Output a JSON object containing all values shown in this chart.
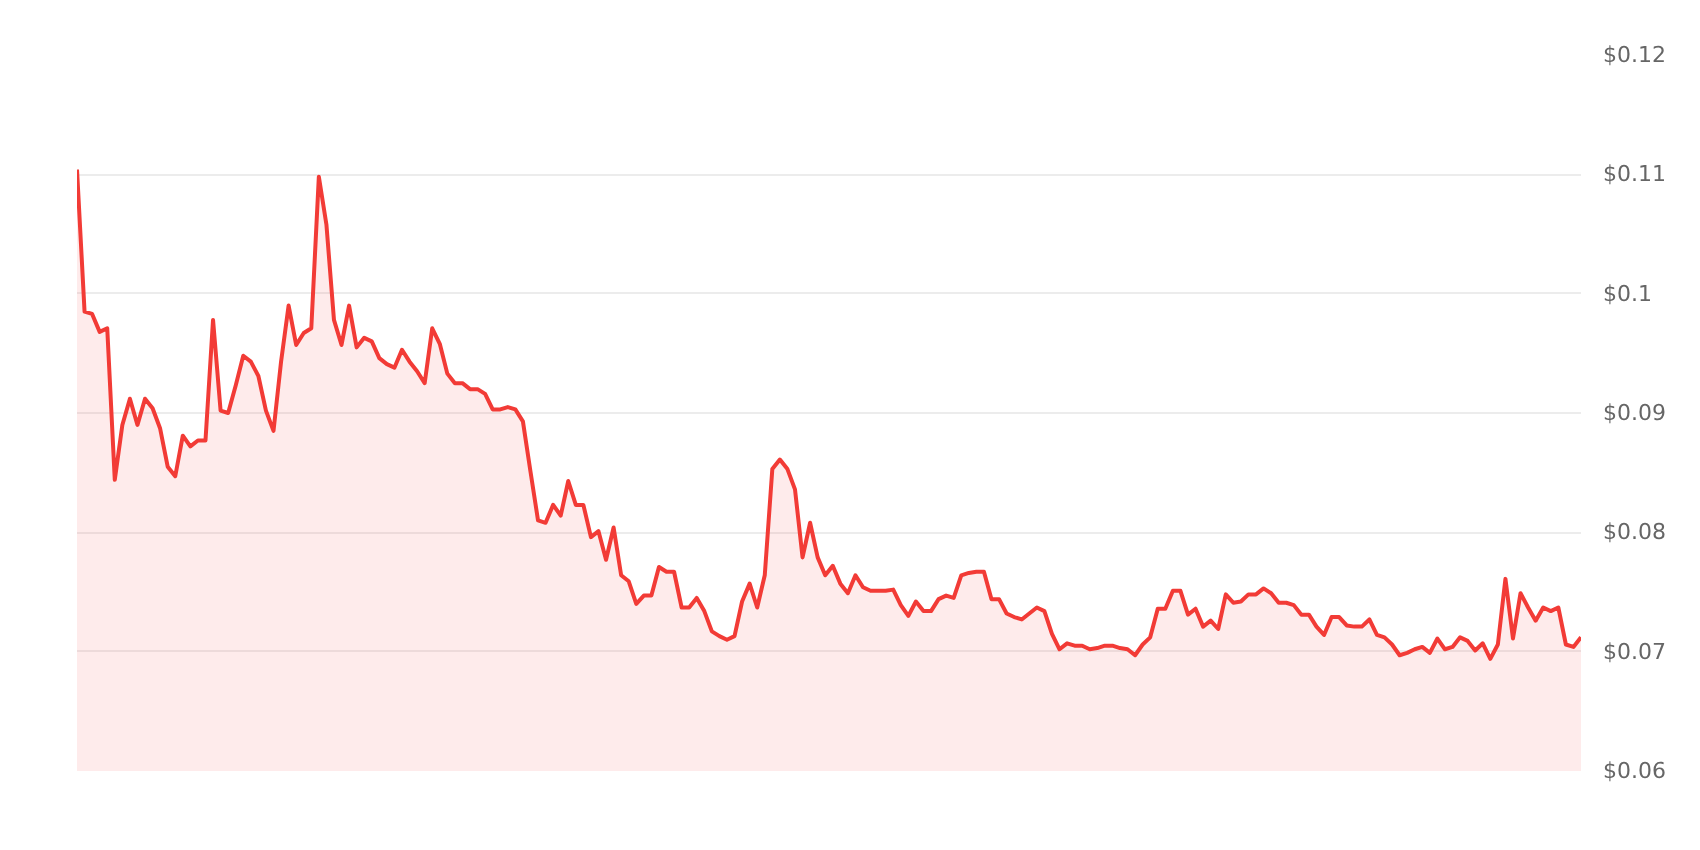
{
  "chart_data": {
    "type": "area",
    "series": [
      {
        "color": "#f23b36",
        "values": [
          0.1104,
          0.0985,
          0.0983,
          0.0968,
          0.0971,
          0.0844,
          0.089,
          0.0912,
          0.089,
          0.0912,
          0.0904,
          0.0887,
          0.0855,
          0.0847,
          0.0881,
          0.0872,
          0.0877,
          0.0877,
          0.0978,
          0.0902,
          0.09,
          0.0923,
          0.0948,
          0.0943,
          0.0931,
          0.0902,
          0.0885,
          0.0943,
          0.099,
          0.0957,
          0.0967,
          0.0971,
          0.1098,
          0.1058,
          0.0978,
          0.0957,
          0.099,
          0.0955,
          0.0963,
          0.096,
          0.0946,
          0.0941,
          0.0938,
          0.0953,
          0.0943,
          0.0935,
          0.0925,
          0.0971,
          0.0958,
          0.0933,
          0.0925,
          0.0925,
          0.092,
          0.092,
          0.0916,
          0.0903,
          0.0903,
          0.0905,
          0.0903,
          0.0893,
          0.0851,
          0.081,
          0.0808,
          0.0823,
          0.0814,
          0.0843,
          0.0823,
          0.0823,
          0.0796,
          0.0801,
          0.0777,
          0.0804,
          0.0764,
          0.0759,
          0.074,
          0.0747,
          0.0747,
          0.0771,
          0.0767,
          0.0767,
          0.0737,
          0.0737,
          0.0745,
          0.0734,
          0.0717,
          0.0713,
          0.071,
          0.0713,
          0.0742,
          0.0757,
          0.0737,
          0.0764,
          0.0853,
          0.0861,
          0.0853,
          0.0836,
          0.0779,
          0.0808,
          0.0779,
          0.0764,
          0.0772,
          0.0757,
          0.0749,
          0.0764,
          0.0754,
          0.0751,
          0.0751,
          0.0751,
          0.0752,
          0.0739,
          0.073,
          0.0742,
          0.0734,
          0.0734,
          0.0744,
          0.0747,
          0.0745,
          0.0764,
          0.0766,
          0.0767,
          0.0767,
          0.0744,
          0.0744,
          0.0732,
          0.0729,
          0.0727,
          0.0732,
          0.0737,
          0.0734,
          0.0715,
          0.0702,
          0.0707,
          0.0705,
          0.0705,
          0.0702,
          0.0703,
          0.0705,
          0.0705,
          0.0703,
          0.0702,
          0.0697,
          0.0706,
          0.0712,
          0.0736,
          0.0736,
          0.0751,
          0.0751,
          0.0731,
          0.0736,
          0.0721,
          0.0726,
          0.0719,
          0.0748,
          0.0741,
          0.0742,
          0.0748,
          0.0748,
          0.0753,
          0.0749,
          0.0741,
          0.0741,
          0.0739,
          0.0731,
          0.0731,
          0.0721,
          0.0714,
          0.0729,
          0.0729,
          0.0722,
          0.0721,
          0.0721,
          0.0727,
          0.0714,
          0.0712,
          0.0706,
          0.0697,
          0.0699,
          0.0702,
          0.0704,
          0.0699,
          0.0711,
          0.0702,
          0.0704,
          0.0712,
          0.0709,
          0.0701,
          0.0707,
          0.0694,
          0.0706,
          0.0761,
          0.0711,
          0.0749,
          0.0737,
          0.0726,
          0.0737,
          0.0734,
          0.0737,
          0.0706,
          0.0704,
          0.0712
        ]
      }
    ],
    "ylim": [
      0.06,
      0.12
    ],
    "yticks": [
      {
        "value": 0.06,
        "label": "$0.06"
      },
      {
        "value": 0.07,
        "label": "$0.07"
      },
      {
        "value": 0.08,
        "label": "$0.08"
      },
      {
        "value": 0.09,
        "label": "$0.09"
      },
      {
        "value": 0.1,
        "label": "$0.1"
      },
      {
        "value": 0.11,
        "label": "$0.11"
      },
      {
        "value": 0.12,
        "label": "$0.12"
      }
    ],
    "grid": "y",
    "tick_labels": "y",
    "line_style": "solid"
  }
}
